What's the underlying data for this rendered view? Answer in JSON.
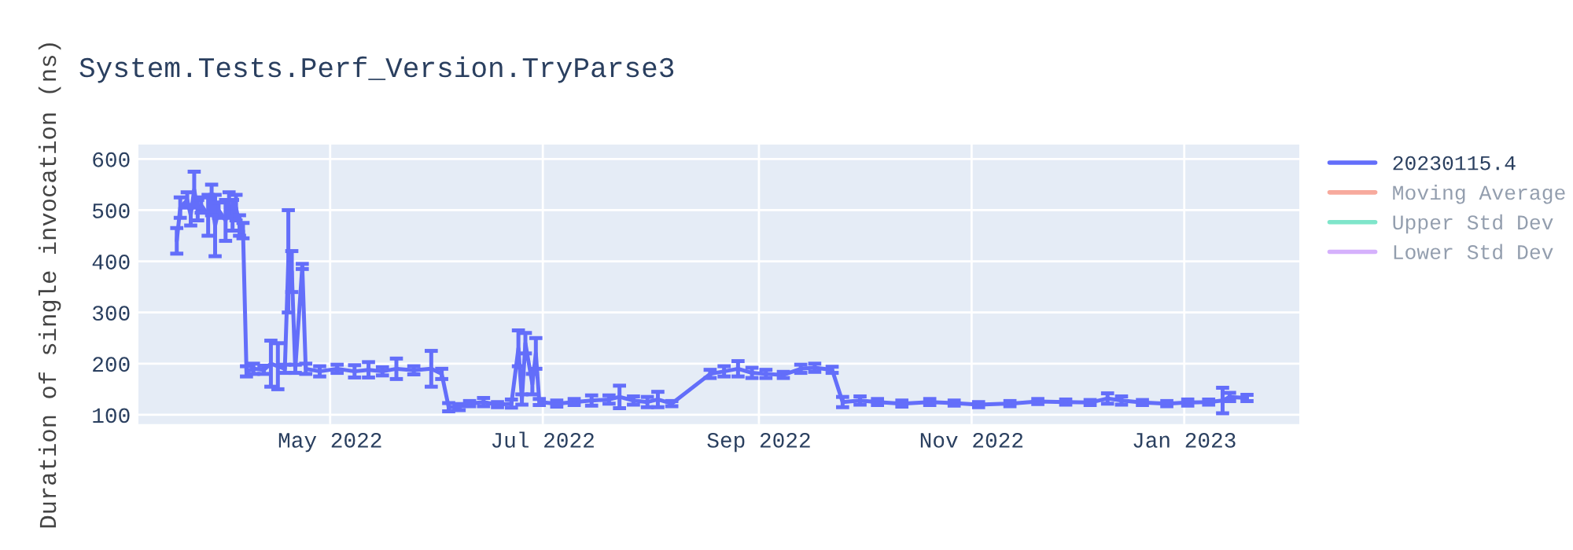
{
  "chart_data": {
    "type": "line",
    "title": "System.Tests.Perf_Version.TryParse3",
    "ylabel": "Duration of single invocation (ns)",
    "xlim": [
      "2022-03-07",
      "2023-02-03"
    ],
    "ylim": [
      82,
      628
    ],
    "xticks": [
      {
        "value": "2022-05-01",
        "label": "May 2022"
      },
      {
        "value": "2022-07-01",
        "label": "Jul 2022"
      },
      {
        "value": "2022-09-01",
        "label": "Sep 2022"
      },
      {
        "value": "2022-11-01",
        "label": "Nov 2022"
      },
      {
        "value": "2023-01-01",
        "label": "Jan 2023"
      }
    ],
    "yticks": [
      100,
      200,
      300,
      400,
      500,
      600
    ],
    "grid": true,
    "legend": "right",
    "marker": "none",
    "line_style": "solid",
    "series": [
      {
        "name": "20230115.4",
        "color": "#636efa",
        "x": [
          "2022-03-18",
          "2022-03-19",
          "2022-03-21",
          "2022-03-22",
          "2022-03-23",
          "2022-03-24",
          "2022-03-25",
          "2022-03-27",
          "2022-03-28",
          "2022-03-29",
          "2022-03-30",
          "2022-04-01",
          "2022-04-02",
          "2022-04-03",
          "2022-04-04",
          "2022-04-05",
          "2022-04-06",
          "2022-04-07",
          "2022-04-09",
          "2022-04-12",
          "2022-04-14",
          "2022-04-16",
          "2022-04-18",
          "2022-04-19",
          "2022-04-20",
          "2022-04-21",
          "2022-04-23",
          "2022-04-24",
          "2022-04-28",
          "2022-05-03",
          "2022-05-08",
          "2022-05-12",
          "2022-05-16",
          "2022-05-20",
          "2022-05-25",
          "2022-05-30",
          "2022-06-02",
          "2022-06-04",
          "2022-06-07",
          "2022-06-10",
          "2022-06-14",
          "2022-06-18",
          "2022-06-22",
          "2022-06-24",
          "2022-06-25",
          "2022-06-26",
          "2022-06-28",
          "2022-06-29",
          "2022-06-30",
          "2022-07-05",
          "2022-07-10",
          "2022-07-15",
          "2022-07-20",
          "2022-07-23",
          "2022-07-27",
          "2022-07-31",
          "2022-08-03",
          "2022-08-07",
          "2022-08-18",
          "2022-08-22",
          "2022-08-26",
          "2022-08-30",
          "2022-09-03",
          "2022-09-08",
          "2022-09-13",
          "2022-09-17",
          "2022-09-22",
          "2022-09-25",
          "2022-09-30",
          "2022-10-05",
          "2022-10-12",
          "2022-10-20",
          "2022-10-27",
          "2022-11-03",
          "2022-11-12",
          "2022-11-20",
          "2022-11-28",
          "2022-12-05",
          "2022-12-10",
          "2022-12-14",
          "2022-12-20",
          "2022-12-27",
          "2023-01-02",
          "2023-01-08",
          "2023-01-12",
          "2023-01-14",
          "2023-01-19"
        ],
        "values": [
          440,
          505,
          520,
          490,
          540,
          500,
          510,
          490,
          520,
          470,
          500,
          480,
          510,
          490,
          505,
          470,
          460,
          185,
          190,
          188,
          200,
          195,
          190,
          400,
          380,
          190,
          390,
          190,
          185,
          190,
          185,
          188,
          185,
          190,
          187,
          190,
          180,
          115,
          115,
          122,
          125,
          120,
          122,
          230,
          130,
          240,
          160,
          220,
          125,
          122,
          125,
          128,
          130,
          135,
          128,
          125,
          130,
          122,
          180,
          185,
          190,
          182,
          180,
          178,
          190,
          192,
          188,
          125,
          128,
          125,
          122,
          125,
          123,
          120,
          122,
          126,
          125,
          124,
          132,
          128,
          124,
          122,
          124,
          125,
          128,
          135,
          133
        ],
        "errors": [
          25,
          20,
          15,
          20,
          35,
          20,
          15,
          40,
          30,
          60,
          15,
          40,
          25,
          30,
          25,
          20,
          15,
          10,
          10,
          8,
          45,
          45,
          8,
          100,
          40,
          8,
          5,
          10,
          10,
          8,
          12,
          15,
          8,
          20,
          8,
          35,
          10,
          8,
          6,
          5,
          8,
          5,
          8,
          35,
          10,
          20,
          20,
          30,
          6,
          6,
          6,
          10,
          8,
          22,
          8,
          10,
          15,
          5,
          8,
          10,
          15,
          10,
          8,
          6,
          8,
          8,
          6,
          10,
          8,
          6,
          6,
          6,
          5,
          5,
          5,
          5,
          5,
          5,
          10,
          8,
          5,
          5,
          6,
          5,
          25,
          8,
          6
        ]
      },
      {
        "name": "Moving Average",
        "color": "#ef553b"
      },
      {
        "name": "Upper Std Dev",
        "color": "#00cc96"
      },
      {
        "name": "Lower Std Dev",
        "color": "#ab63fa"
      }
    ]
  }
}
